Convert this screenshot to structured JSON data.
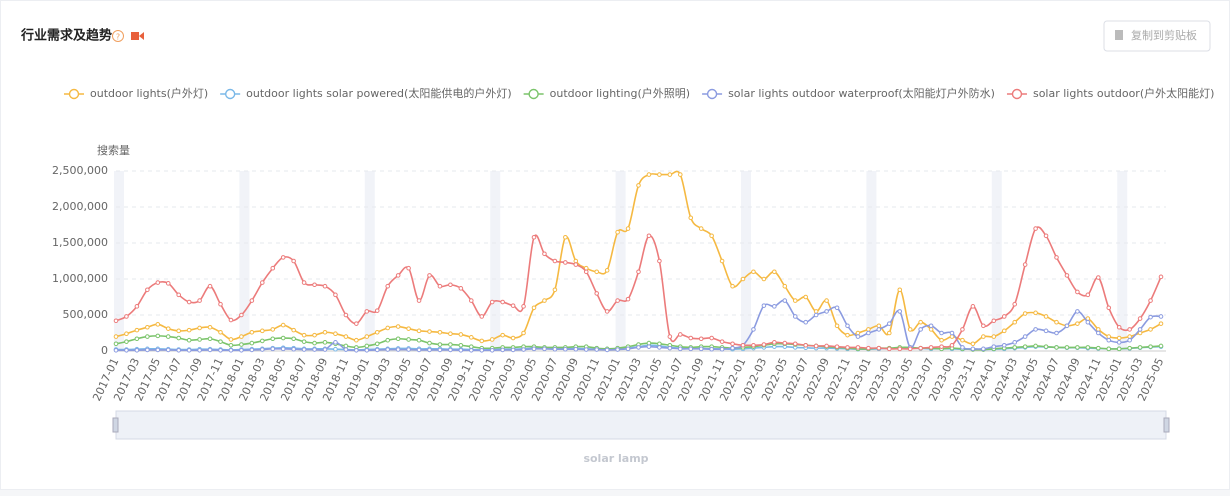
{
  "header": {
    "title": "行业需求及趋势",
    "button": "复制到剪贴板"
  },
  "chart_data": {
    "type": "line",
    "ylabel": "搜索量",
    "zoom_label": "solar lamp",
    "grid": true,
    "categories": [
      "2017-01",
      null,
      "2017-03",
      null,
      "2017-05",
      null,
      "2017-07",
      null,
      "2017-09",
      null,
      "2017-11",
      null,
      "2018-01",
      null,
      "2018-03",
      null,
      "2018-05",
      null,
      "2018-07",
      null,
      "2018-09",
      null,
      "2018-11",
      null,
      "2019-01",
      null,
      "2019-03",
      null,
      "2019-05",
      null,
      "2019-07",
      null,
      "2019-09",
      null,
      "2019-11",
      null,
      "2020-01",
      null,
      "2020-03",
      null,
      "2020-05",
      null,
      "2020-07",
      null,
      "2020-09",
      null,
      "2020-11",
      null,
      "2021-01",
      null,
      "2021-03",
      null,
      "2021-05",
      null,
      "2021-07",
      null,
      "2021-09",
      null,
      "2021-11",
      null,
      "2022-01",
      null,
      "2022-03",
      null,
      "2022-05",
      null,
      "2022-07",
      null,
      "2022-09",
      null,
      "2022-11",
      null,
      "2023-01",
      null,
      "2023-03",
      null,
      "2023-05",
      null,
      "2023-07",
      null,
      "2023-09",
      null,
      "2023-11",
      null,
      "2024-01",
      null,
      "2024-03",
      null,
      "2024-05",
      null,
      "2024-07",
      null,
      "2024-09",
      null,
      "2024-11",
      null,
      "2025-01",
      null,
      "2025-03",
      null,
      "2025-05"
    ],
    "ylim": [
      0,
      2500000
    ],
    "yticks": [
      0,
      {
        "value": 500000,
        "label": "500,000"
      },
      {
        "value": 1000000,
        "label": "1,000,000"
      },
      {
        "value": 1500000,
        "label": "1,500,000"
      },
      {
        "value": 2000000,
        "label": "2,000,000"
      },
      {
        "value": 2500000,
        "label": "2,500,000"
      }
    ],
    "series": [
      {
        "name": "outdoor lights(户外灯)",
        "color": "#f5b942",
        "values": [
          200000,
          240000,
          290000,
          330000,
          370000,
          310000,
          280000,
          290000,
          320000,
          330000,
          260000,
          160000,
          200000,
          260000,
          280000,
          300000,
          360000,
          290000,
          220000,
          220000,
          260000,
          240000,
          200000,
          150000,
          200000,
          260000,
          320000,
          340000,
          310000,
          280000,
          270000,
          260000,
          240000,
          230000,
          190000,
          140000,
          160000,
          220000,
          180000,
          250000,
          600000,
          700000,
          850000,
          1580000,
          1250000,
          1150000,
          1100000,
          1120000,
          1650000,
          1700000,
          2300000,
          2450000,
          2450000,
          2450000,
          2450000,
          1850000,
          1700000,
          1600000,
          1250000,
          900000,
          1000000,
          1100000,
          1000000,
          1100000,
          900000,
          700000,
          750000,
          550000,
          700000,
          350000,
          220000,
          250000,
          300000,
          350000,
          250000,
          850000,
          300000,
          400000,
          300000,
          150000,
          200000,
          150000,
          100000,
          200000,
          200000,
          280000,
          400000,
          520000,
          530000,
          480000,
          400000,
          350000,
          380000,
          450000,
          300000,
          200000,
          180000,
          200000,
          250000,
          300000,
          380000
        ]
      },
      {
        "name": "outdoor lights solar powered(太阳能供电的户外灯)",
        "color": "#7ab8e8",
        "values": [
          20000,
          20000,
          25000,
          30000,
          30000,
          25000,
          20000,
          20000,
          25000,
          25000,
          20000,
          15000,
          20000,
          25000,
          30000,
          40000,
          45000,
          40000,
          30000,
          30000,
          30000,
          25000,
          20000,
          15000,
          20000,
          25000,
          30000,
          35000,
          35000,
          30000,
          30000,
          30000,
          25000,
          25000,
          20000,
          15000,
          20000,
          25000,
          25000,
          30000,
          40000,
          40000,
          35000,
          35000,
          35000,
          30000,
          25000,
          20000,
          25000,
          40000,
          60000,
          80000,
          70000,
          50000,
          40000,
          35000,
          35000,
          30000,
          30000,
          25000,
          30000,
          40000,
          50000,
          60000,
          60000,
          50000,
          45000,
          40000,
          40000,
          35000,
          30000,
          25000,
          25000,
          30000,
          35000,
          40000,
          40000,
          35000,
          30000,
          30000,
          30000,
          25000,
          25000,
          20000,
          25000,
          30000,
          40000,
          50000,
          60000,
          55000,
          50000,
          45000,
          45000,
          40000,
          35000,
          30000,
          30000,
          35000,
          45000,
          55000,
          60000
        ]
      },
      {
        "name": "outdoor lighting(户外照明)",
        "color": "#7bc46b",
        "values": [
          100000,
          130000,
          170000,
          200000,
          210000,
          200000,
          180000,
          150000,
          160000,
          170000,
          130000,
          80000,
          90000,
          110000,
          140000,
          170000,
          180000,
          170000,
          130000,
          110000,
          120000,
          100000,
          70000,
          50000,
          70000,
          100000,
          150000,
          170000,
          160000,
          150000,
          110000,
          90000,
          90000,
          80000,
          60000,
          40000,
          40000,
          50000,
          50000,
          60000,
          60000,
          50000,
          50000,
          50000,
          60000,
          60000,
          40000,
          30000,
          40000,
          60000,
          90000,
          110000,
          100000,
          80000,
          60000,
          50000,
          60000,
          60000,
          50000,
          40000,
          50000,
          60000,
          80000,
          100000,
          100000,
          90000,
          80000,
          70000,
          60000,
          50000,
          40000,
          30000,
          30000,
          40000,
          40000,
          50000,
          50000,
          40000,
          40000,
          30000,
          40000,
          30000,
          20000,
          20000,
          30000,
          40000,
          50000,
          60000,
          70000,
          60000,
          50000,
          50000,
          50000,
          50000,
          40000,
          30000,
          30000,
          40000,
          50000,
          60000,
          70000
        ]
      },
      {
        "name": "solar lights outdoor waterproof(太阳能灯户外防水)",
        "color": "#8b9be0",
        "values": [
          10000,
          10000,
          10000,
          15000,
          15000,
          15000,
          10000,
          10000,
          10000,
          15000,
          10000,
          10000,
          10000,
          15000,
          20000,
          30000,
          30000,
          25000,
          20000,
          20000,
          20000,
          120000,
          20000,
          10000,
          10000,
          15000,
          20000,
          20000,
          20000,
          15000,
          15000,
          15000,
          15000,
          10000,
          10000,
          10000,
          10000,
          15000,
          15000,
          20000,
          30000,
          30000,
          25000,
          25000,
          25000,
          20000,
          20000,
          15000,
          20000,
          30000,
          50000,
          60000,
          50000,
          40000,
          30000,
          30000,
          30000,
          25000,
          25000,
          40000,
          80000,
          300000,
          630000,
          620000,
          700000,
          480000,
          400000,
          500000,
          550000,
          600000,
          350000,
          200000,
          250000,
          300000,
          380000,
          550000,
          50000,
          300000,
          350000,
          250000,
          250000,
          50000,
          30000,
          30000,
          60000,
          80000,
          120000,
          200000,
          300000,
          280000,
          250000,
          350000,
          550000,
          400000,
          250000,
          150000,
          120000,
          150000,
          300000,
          470000,
          480000
        ]
      },
      {
        "name": "solar lights outdoor(户外太阳能灯)",
        "color": "#ec7b7b",
        "values": [
          420000,
          480000,
          620000,
          850000,
          950000,
          940000,
          780000,
          680000,
          700000,
          900000,
          650000,
          430000,
          500000,
          700000,
          950000,
          1150000,
          1300000,
          1250000,
          950000,
          920000,
          900000,
          780000,
          500000,
          380000,
          550000,
          560000,
          900000,
          1050000,
          1150000,
          700000,
          1050000,
          900000,
          920000,
          870000,
          700000,
          480000,
          680000,
          680000,
          630000,
          620000,
          1580000,
          1350000,
          1250000,
          1230000,
          1200000,
          1100000,
          800000,
          550000,
          700000,
          720000,
          1100000,
          1600000,
          1250000,
          200000,
          230000,
          180000,
          170000,
          180000,
          130000,
          100000,
          80000,
          80000,
          90000,
          120000,
          110000,
          100000,
          80000,
          70000,
          70000,
          60000,
          50000,
          50000,
          40000,
          40000,
          30000,
          30000,
          30000,
          40000,
          50000,
          60000,
          80000,
          300000,
          620000,
          350000,
          420000,
          480000,
          650000,
          1200000,
          1700000,
          1600000,
          1300000,
          1050000,
          820000,
          780000,
          1020000,
          600000,
          330000,
          300000,
          450000,
          700000,
          1030000
        ]
      }
    ]
  }
}
